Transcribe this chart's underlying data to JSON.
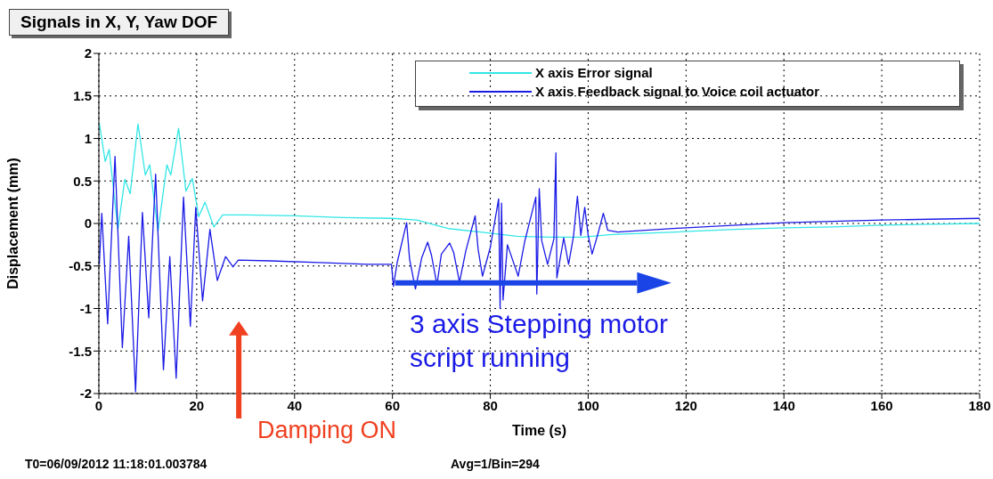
{
  "chart_data": {
    "type": "line",
    "title": "Signals in X, Y, Yaw DOF",
    "xlabel": "Time (s)",
    "ylabel": "Displacement (mm)",
    "xlim": [
      0,
      180
    ],
    "xticks": [
      0,
      20,
      40,
      60,
      80,
      100,
      120,
      140,
      160,
      180
    ],
    "ylim": [
      -2,
      2
    ],
    "yticks": [
      -2,
      -1.5,
      -1,
      -0.5,
      0,
      0.5,
      1,
      1.5,
      2
    ],
    "grid": true,
    "legend": "top right",
    "marker": "none",
    "line_style": "solid",
    "series": [
      {
        "name": "X axis Error signal",
        "color": "#33e6e6",
        "x": [
          0.1,
          1.3,
          2.1,
          3.9,
          5.3,
          6.4,
          8.0,
          9.5,
          10.4,
          12.1,
          13.9,
          14.7,
          16.3,
          17.8,
          19.1,
          20.4,
          21.7,
          23.5,
          25.3,
          30,
          40,
          50,
          60,
          65,
          71.4,
          78,
          85.4,
          92,
          98.7,
          105,
          118,
          130,
          140,
          150,
          160,
          170,
          180
        ],
        "values": [
          1.18,
          0.73,
          0.87,
          -0.07,
          0.52,
          0.35,
          1.17,
          0.57,
          0.69,
          -0.09,
          0.69,
          0.57,
          1.12,
          0.38,
          0.53,
          0.08,
          0.25,
          -0.04,
          0.1,
          0.1,
          0.09,
          0.07,
          0.06,
          0.04,
          -0.06,
          -0.1,
          -0.15,
          -0.16,
          -0.16,
          -0.13,
          -0.1,
          -0.07,
          -0.05,
          -0.04,
          -0.02,
          -0.01,
          0.0
        ]
      },
      {
        "name": "X axis Feedback signal to Voice coil actuator",
        "color": "#1a1ae6",
        "x": [
          0.1,
          0.6,
          1.8,
          3.3,
          4.8,
          6.1,
          7.5,
          8.9,
          10.2,
          11.6,
          13.2,
          14.5,
          15.8,
          17.3,
          18.7,
          19.8,
          21.2,
          22.7,
          24.2,
          25.9,
          27.4,
          28.5,
          35,
          45,
          55,
          59.8,
          60.2,
          61,
          62.9,
          63.5,
          64.7,
          66,
          67.2,
          68,
          69.1,
          70,
          71.7,
          72.5,
          73.7,
          75,
          76.9,
          77.5,
          78.4,
          80,
          81.7,
          82.0,
          82.3,
          82.6,
          83.5,
          85.7,
          87,
          89.3,
          89.5,
          90.0,
          90.5,
          91.7,
          93.0,
          93.4,
          93.6,
          95,
          96.0,
          97,
          97.8,
          98.5,
          99.3,
          100,
          100.8,
          102,
          103.1,
          104,
          106,
          120,
          140,
          160,
          180
        ],
        "values": [
          -0.48,
          0.12,
          -1.18,
          0.79,
          -1.46,
          -0.15,
          -1.98,
          0.13,
          -1.11,
          0.58,
          -1.72,
          -0.39,
          -1.82,
          0.31,
          -1.21,
          0.19,
          -0.91,
          -0.07,
          -0.67,
          -0.39,
          -0.51,
          -0.43,
          -0.44,
          -0.46,
          -0.48,
          -0.48,
          -0.74,
          -0.45,
          0.01,
          -0.42,
          -0.77,
          -0.4,
          -0.22,
          -0.38,
          -0.72,
          -0.36,
          -0.23,
          -0.34,
          -0.69,
          -0.32,
          0.09,
          -0.3,
          -0.62,
          -0.28,
          0.29,
          -1.0,
          0.24,
          -0.9,
          -0.25,
          -0.62,
          -0.22,
          0.31,
          -0.83,
          0.41,
          -0.2,
          -0.48,
          -0.18,
          0.83,
          -0.64,
          -0.17,
          -0.48,
          -0.15,
          0.32,
          -0.14,
          0.19,
          -0.14,
          -0.36,
          -0.12,
          0.12,
          -0.08,
          -0.1,
          -0.05,
          0.01,
          0.04,
          0.06
        ]
      }
    ],
    "annotations": [
      "3 axis Stepping motor script running",
      "Damping ON",
      "T0=06/09/2012 11:18:01.003784",
      "Avg=1/Bin=294"
    ]
  }
}
